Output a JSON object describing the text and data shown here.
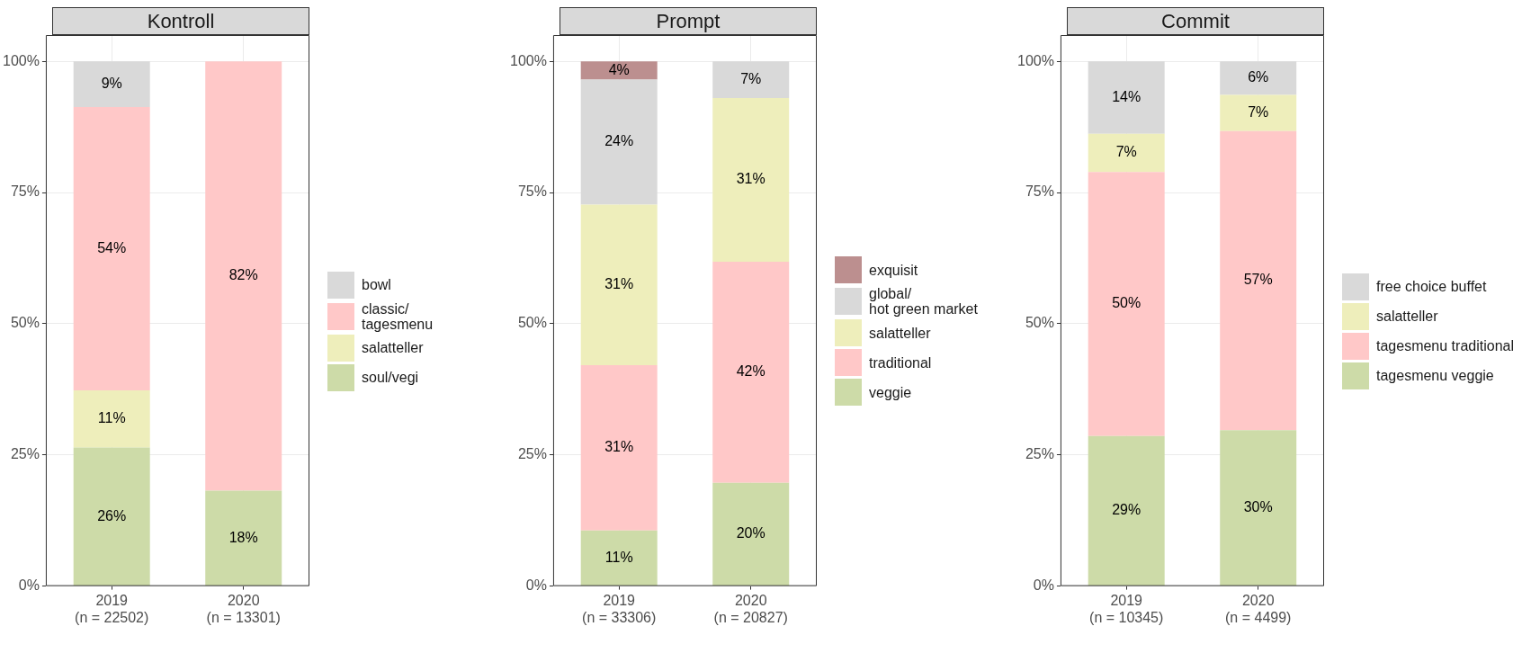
{
  "chart_data": [
    {
      "type": "bar",
      "title": "Kontroll",
      "stacked": true,
      "categories": [
        "2019\n(n = 22502)",
        "2020\n(n = 13301)"
      ],
      "ylim": [
        0,
        105
      ],
      "yticks": [
        {
          "value": 0,
          "label": "0%"
        },
        {
          "value": 25,
          "label": "25%"
        },
        {
          "value": 50,
          "label": "50%"
        },
        {
          "value": 75,
          "label": "75%"
        },
        {
          "value": 100,
          "label": "100%"
        }
      ],
      "grid": true,
      "legend": "right",
      "series": [
        {
          "name": "soul/vegi",
          "color": "#cddba8",
          "values": [
            26.4,
            18.2
          ],
          "value_labels": [
            "26%",
            "18%"
          ]
        },
        {
          "name": "salatteller",
          "color": "#eeeebb",
          "values": [
            10.9,
            0
          ],
          "value_labels": [
            "11%",
            null
          ]
        },
        {
          "name": "classic/\ntagesmenu",
          "color": "#ffc8c8",
          "values": [
            54.0,
            81.8
          ],
          "value_labels": [
            "54%",
            "82%"
          ]
        },
        {
          "name": "bowl",
          "color": "#d9d9d9",
          "values": [
            8.7,
            0
          ],
          "value_labels": [
            "9%",
            null
          ]
        }
      ]
    },
    {
      "type": "bar",
      "title": "Prompt",
      "stacked": true,
      "categories": [
        "2019\n(n = 33306)",
        "2020\n(n = 20827)"
      ],
      "ylim": [
        0,
        105
      ],
      "yticks": [
        {
          "value": 0,
          "label": "0%"
        },
        {
          "value": 25,
          "label": "25%"
        },
        {
          "value": 50,
          "label": "50%"
        },
        {
          "value": 75,
          "label": "75%"
        },
        {
          "value": 100,
          "label": "100%"
        }
      ],
      "grid": true,
      "legend": "right",
      "series": [
        {
          "name": "veggie",
          "color": "#cddba8",
          "values": [
            10.6,
            19.7
          ],
          "value_labels": [
            "11%",
            "20%"
          ]
        },
        {
          "name": "traditional",
          "color": "#ffc8c8",
          "values": [
            31.5,
            42.1
          ],
          "value_labels": [
            "31%",
            "42%"
          ]
        },
        {
          "name": "salatteller",
          "color": "#eeeebb",
          "values": [
            30.6,
            31.2
          ],
          "value_labels": [
            "31%",
            "31%"
          ]
        },
        {
          "name": "global/\nhot green market",
          "color": "#d9d9d9",
          "values": [
            23.8,
            7.0
          ],
          "value_labels": [
            "24%",
            "7%"
          ]
        },
        {
          "name": "exquisit",
          "color": "#bc8f8f",
          "values": [
            3.5,
            0
          ],
          "value_labels": [
            "4%",
            null
          ]
        }
      ]
    },
    {
      "type": "bar",
      "title": "Commit",
      "stacked": true,
      "categories": [
        "2019\n(n = 10345)",
        "2020\n(n = 4499)"
      ],
      "ylim": [
        0,
        105
      ],
      "yticks": [
        {
          "value": 0,
          "label": "0%"
        },
        {
          "value": 25,
          "label": "25%"
        },
        {
          "value": 50,
          "label": "50%"
        },
        {
          "value": 75,
          "label": "75%"
        },
        {
          "value": 100,
          "label": "100%"
        }
      ],
      "grid": true,
      "legend": "right",
      "series": [
        {
          "name": "tagesmenu veggie",
          "color": "#cddba8",
          "values": [
            28.6,
            29.7
          ],
          "value_labels": [
            "29%",
            "30%"
          ]
        },
        {
          "name": "tagesmenu traditional",
          "color": "#ffc8c8",
          "values": [
            50.3,
            57.0
          ],
          "value_labels": [
            "50%",
            "57%"
          ]
        },
        {
          "name": "salatteller",
          "color": "#eeeebb",
          "values": [
            7.3,
            6.9
          ],
          "value_labels": [
            "7%",
            "7%"
          ]
        },
        {
          "name": "free choice buffet",
          "color": "#d9d9d9",
          "values": [
            13.8,
            6.4
          ],
          "value_labels": [
            "14%",
            "6%"
          ]
        }
      ]
    }
  ]
}
